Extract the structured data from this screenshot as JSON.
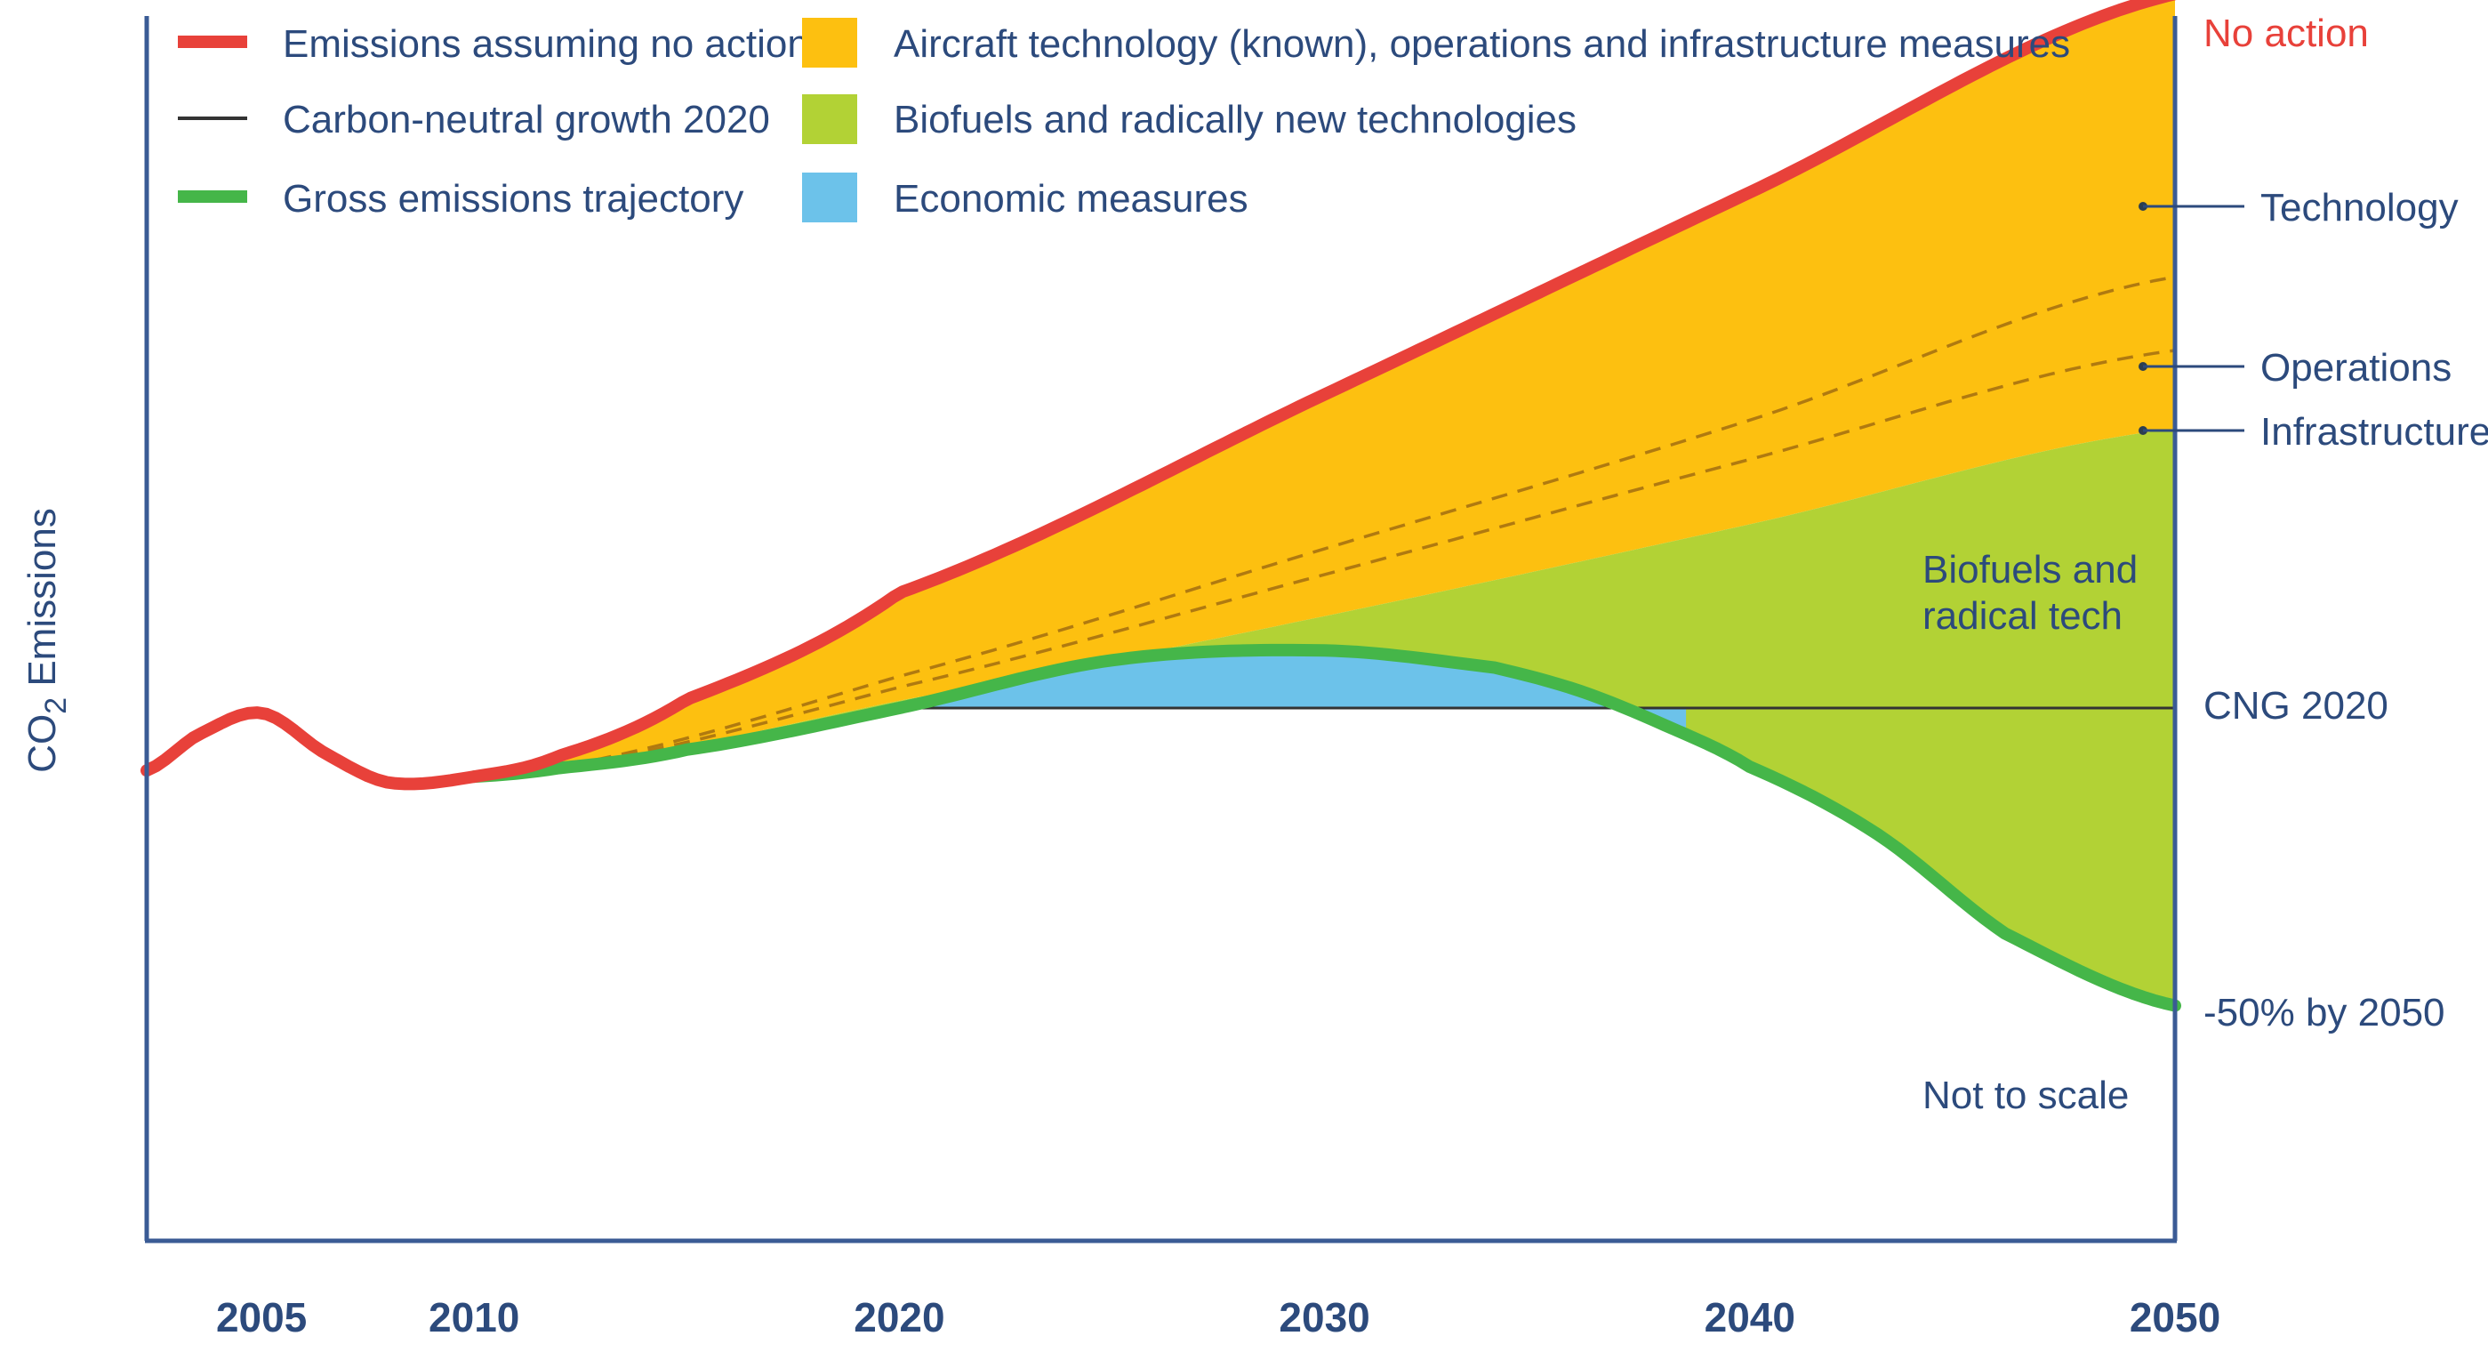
{
  "chart_data": {
    "type": "area",
    "ylabel": "CO2 Emissions",
    "ylabel_parts": {
      "main": "CO",
      "sub": "2",
      "rest": " Emissions"
    },
    "x_ticks": [
      "2005",
      "2010",
      "2020",
      "2030",
      "2040",
      "2050"
    ],
    "x_range": [
      2002.3,
      2050
    ],
    "y_range": [
      0,
      100
    ],
    "legend": {
      "placement": "top-left",
      "items": [
        {
          "label": "Emissions assuming no action",
          "kind": "line",
          "color": "#e8413a"
        },
        {
          "label": "Carbon-neutral growth 2020",
          "kind": "line",
          "color": "#333333"
        },
        {
          "label": "Gross emissions trajectory",
          "kind": "line",
          "color": "#45b649"
        },
        {
          "label": "Aircraft technology (known), operations and infrastructure measures",
          "kind": "area",
          "color": "#fdc010"
        },
        {
          "label": "Biofuels and radically new technologies",
          "kind": "area",
          "color": "#b2d235"
        },
        {
          "label": "Economic measures",
          "kind": "area",
          "color": "#6cc2ea"
        }
      ]
    },
    "series": [
      {
        "name": "Emissions assuming no action",
        "color": "#e8413a",
        "x": [
          2002.3,
          2003.5,
          2005,
          2006.5,
          2008,
          2010,
          2012,
          2015,
          2020,
          2030,
          2040,
          2050
        ],
        "y": [
          38.4,
          41.3,
          43.1,
          39.8,
          37.4,
          37.9,
          39.6,
          44.2,
          52.9,
          69.1,
          85.6,
          101.8
        ]
      },
      {
        "name": "Gross emissions trajectory",
        "color": "#45b649",
        "x": [
          2010,
          2012,
          2015,
          2020,
          2025,
          2030,
          2034,
          2036,
          2038,
          2040,
          2043,
          2046,
          2050
        ],
        "y": [
          37.9,
          38.6,
          40.1,
          43.5,
          47.4,
          48.2,
          46.8,
          44.9,
          42.1,
          38.7,
          33.2,
          25.1,
          19.2
        ]
      },
      {
        "name": "Carbon-neutral growth 2020",
        "color": "#333333",
        "x": [
          2020,
          2050
        ],
        "y": [
          43.5,
          43.5
        ]
      }
    ],
    "areas": [
      {
        "name": "Aircraft technology (known), operations and infrastructure measures",
        "color": "#fdc010",
        "upper": "Emissions assuming no action",
        "lower_x": [
          2011,
          2020,
          2030,
          2040,
          2050
        ],
        "lower_y": [
          38.2,
          44.1,
          51.0,
          58.5,
          66.3
        ]
      },
      {
        "name": "Biofuels and radically new technologies",
        "color": "#b2d235",
        "upper_x": [
          2011,
          2020,
          2030,
          2040,
          2050
        ],
        "upper_y": [
          38.2,
          44.1,
          51.0,
          58.5,
          66.3
        ],
        "lower": "Gross emissions trajectory / CNG 2020"
      },
      {
        "name": "Economic measures",
        "color": "#6cc2ea",
        "between": [
          "Gross emissions trajectory",
          "Carbon-neutral growth 2020"
        ],
        "x_range": [
          2020,
          2038.5
        ]
      }
    ],
    "dashed_lines": [
      {
        "name": "Operations",
        "x": [
          2011,
          2020,
          2030,
          2040,
          2050
        ],
        "y": [
          38.2,
          46.1,
          56.5,
          67.0,
          78.7
        ]
      },
      {
        "name": "Infrastructure",
        "x": [
          2011,
          2020,
          2030,
          2040,
          2050
        ],
        "y": [
          38.2,
          45.2,
          54.4,
          63.8,
          72.7
        ]
      }
    ],
    "annotations": {
      "no_action": "No action",
      "technology": "Technology",
      "operations": "Operations",
      "infrastructure": "Infrastructure",
      "biofuels_line1": "Biofuels and",
      "biofuels_line2": "radical tech",
      "cng": "CNG 2020",
      "minus50": "-50% by 2050",
      "not_to_scale": "Not to scale"
    }
  }
}
